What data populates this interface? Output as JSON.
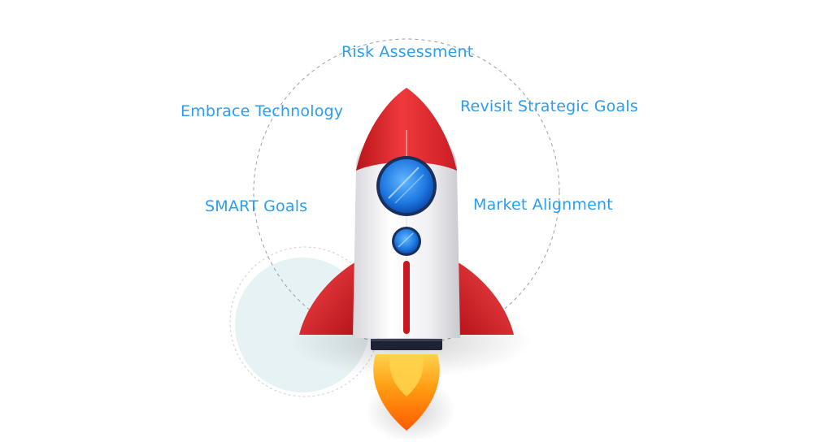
{
  "diagram": {
    "labels": {
      "top": "Risk Assessment",
      "upper_left": "Embrace Technology",
      "upper_right": "Revisit Strategic Goals",
      "lower_left": "SMART Goals",
      "lower_right": "Market Alignment"
    },
    "colors": {
      "label_text": "#2a9df4",
      "circle_stroke": "#9e9e9e",
      "bubble_fill": "#e7f2f4",
      "rocket_red": "#e02a2f",
      "rocket_body": "#f3f3f5",
      "window_blue": "#1e7fe0",
      "flame_orange": "#ff8a00"
    }
  }
}
